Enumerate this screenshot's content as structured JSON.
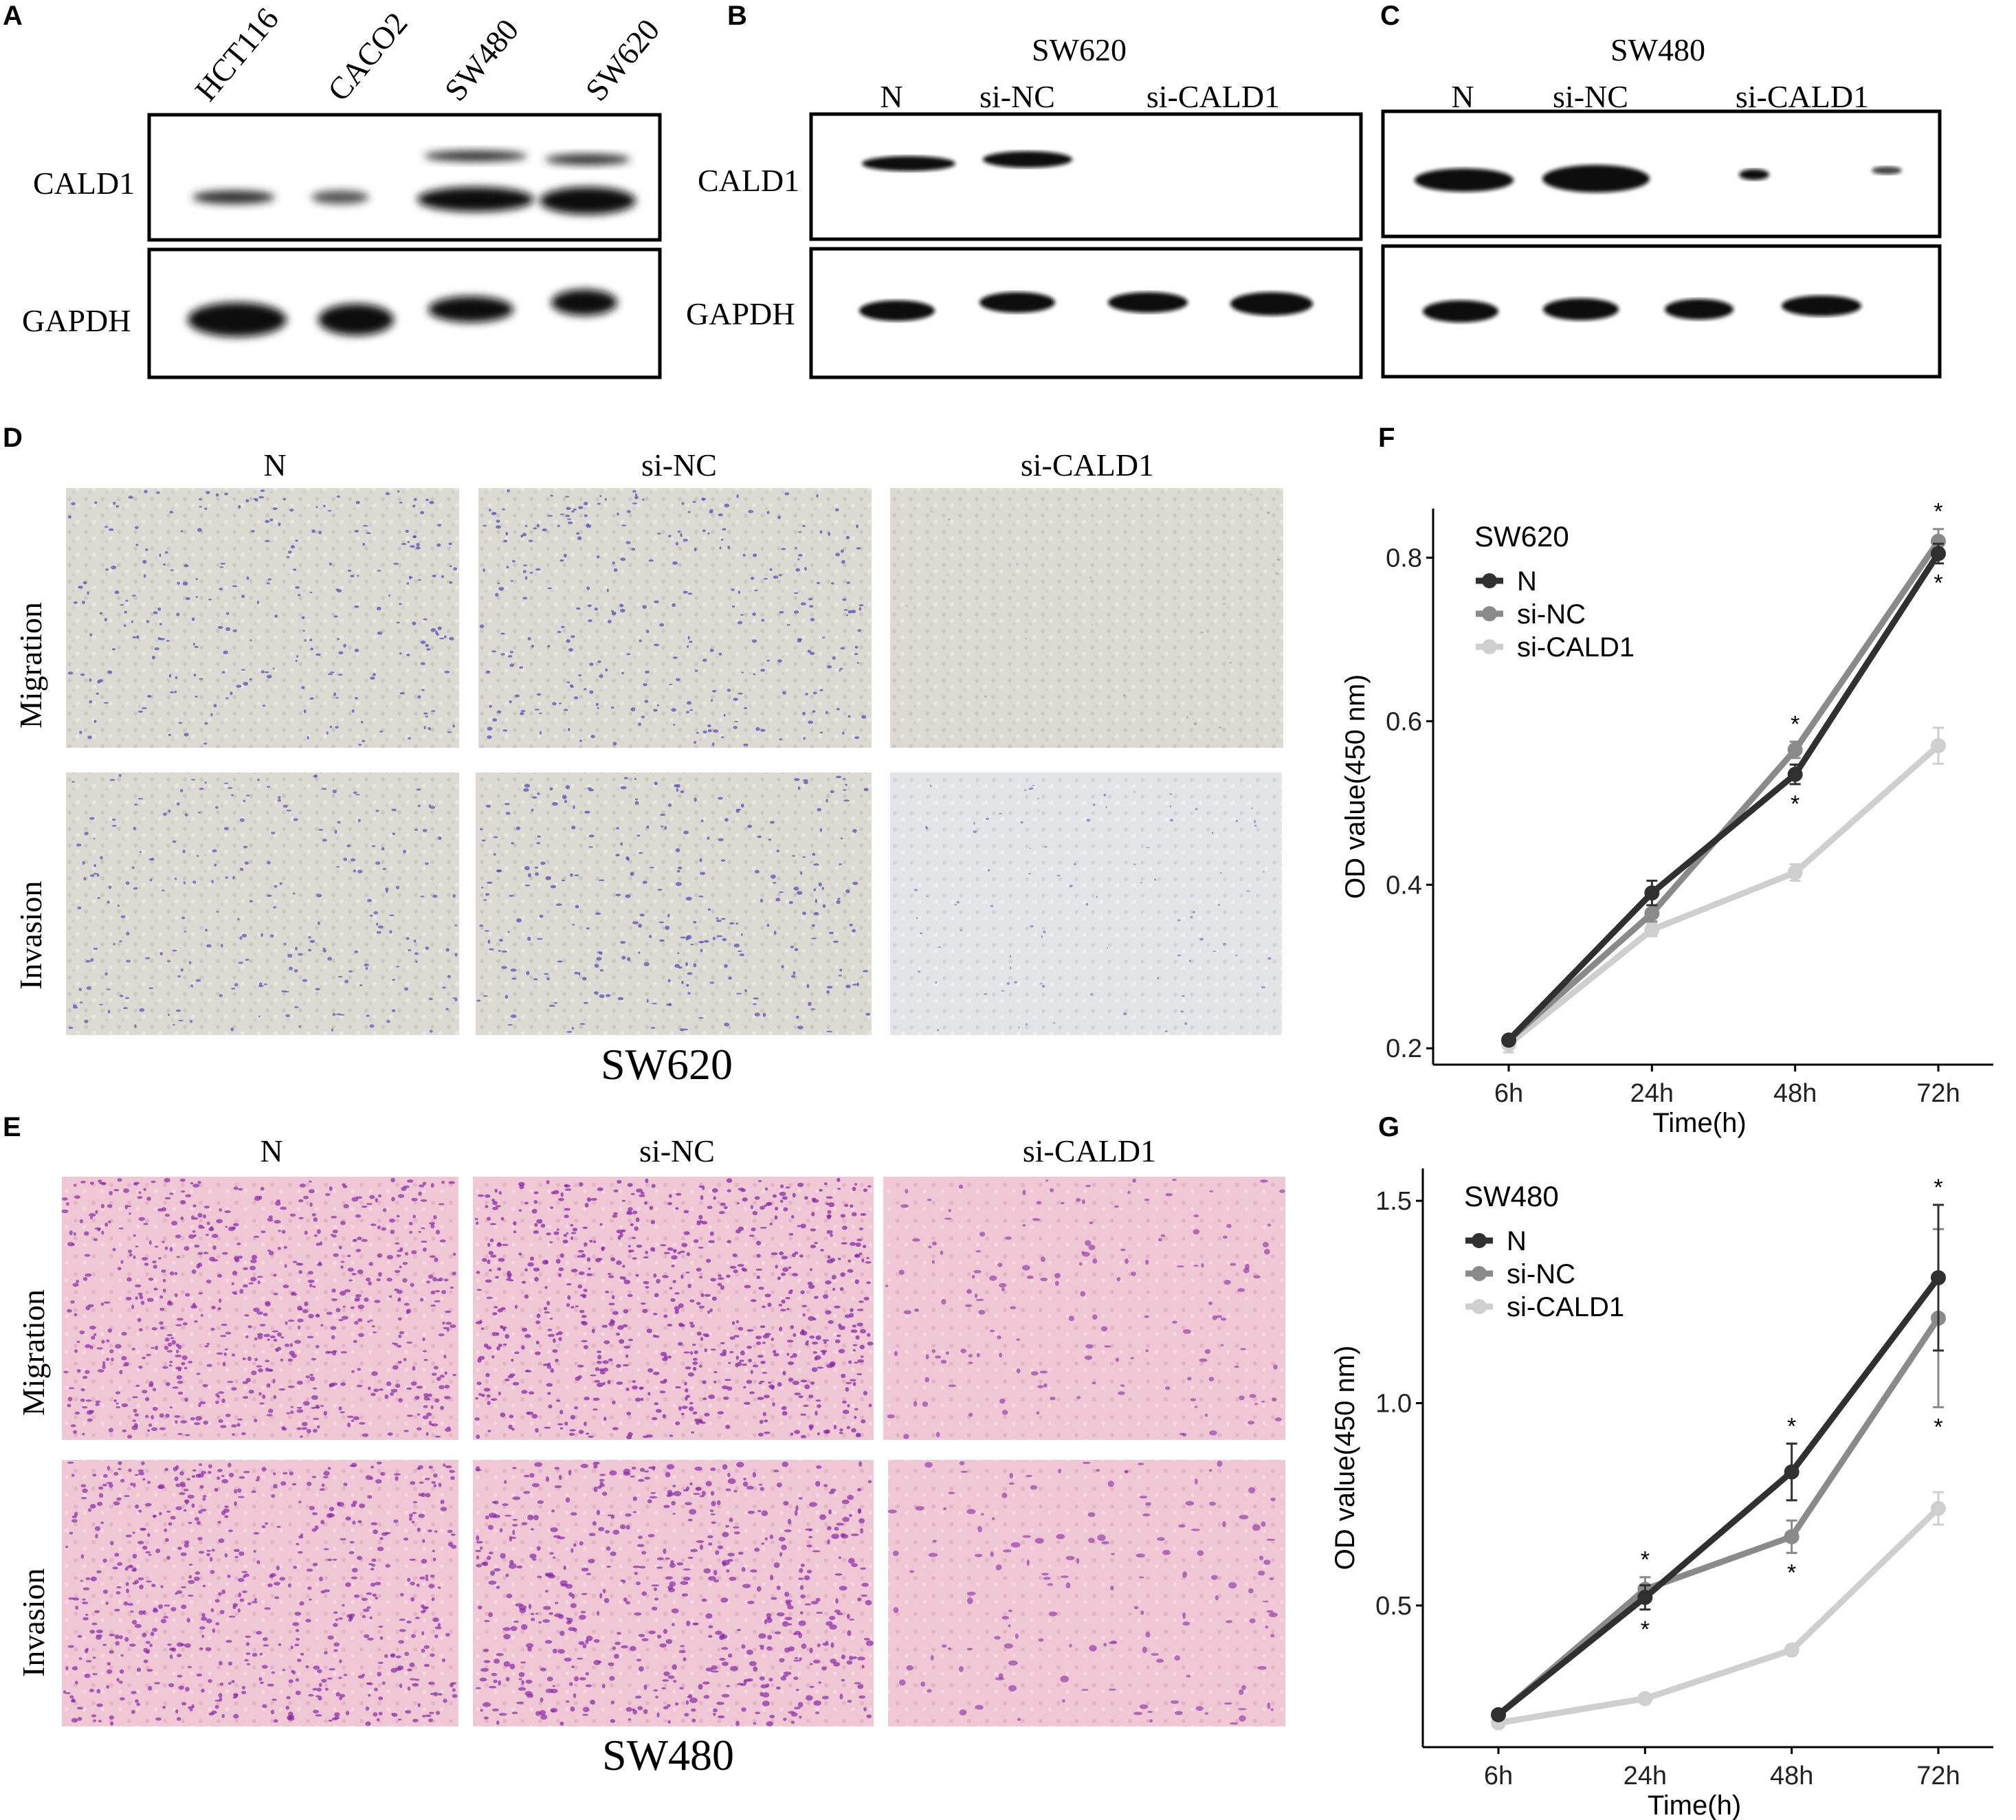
{
  "panel_letters": {
    "A": "A",
    "B": "B",
    "C": "C",
    "D": "D",
    "E": "E",
    "F": "F",
    "G": "G"
  },
  "panelA": {
    "lanes": [
      "HCT116",
      "CACO2",
      "SW480",
      "SW620"
    ],
    "rows": [
      "CALD1",
      "GAPDH"
    ]
  },
  "panelB": {
    "title": "SW620",
    "lanes": [
      "N",
      "si-NC",
      "si-CALD1"
    ],
    "rows": [
      "CALD1",
      "GAPDH"
    ]
  },
  "panelC": {
    "title": "SW480",
    "lanes": [
      "N",
      "si-NC",
      "si-CALD1"
    ]
  },
  "panelD": {
    "columns": [
      "N",
      "si-NC",
      "si-CALD1"
    ],
    "rows": [
      "Migration",
      "Invasion"
    ],
    "caption": "SW620",
    "stain_color": "#5b50b8",
    "background_color": "#d9d8cf"
  },
  "panelE": {
    "columns": [
      "N",
      "si-NC",
      "si-CALD1"
    ],
    "rows": [
      "Migration",
      "Invasion"
    ],
    "caption": "SW480",
    "stain_color": "#8a2aa8",
    "background_color": "#efc6d4"
  },
  "chart_data": [
    {
      "type": "line",
      "panel": "F",
      "xlabel": "Time(h)",
      "ylabel": "OD value(450 nm)",
      "categories": [
        "6h",
        "24h",
        "48h",
        "72h"
      ],
      "ylim": [
        0.18,
        0.86
      ],
      "yticks": [
        "0.2",
        "0.4",
        "0.6",
        "0.8"
      ],
      "legend_title": "SW620",
      "legend_position": "top-left",
      "grid": false,
      "series": [
        {
          "name": "N",
          "color": "#303030",
          "values": [
            0.21,
            0.39,
            0.535,
            0.805
          ],
          "err": [
            0.005,
            0.015,
            0.012,
            0.012
          ]
        },
        {
          "name": "si-NC",
          "color": "#8a8a8a",
          "values": [
            0.21,
            0.365,
            0.565,
            0.82
          ],
          "err": [
            0.005,
            0.01,
            0.01,
            0.015
          ]
        },
        {
          "name": "si-CALD1",
          "color": "#cfcfcf",
          "values": [
            0.205,
            0.345,
            0.415,
            0.57
          ],
          "err": [
            0.01,
            0.008,
            0.01,
            0.022
          ]
        }
      ],
      "annotations": [
        "*",
        "*",
        "*",
        "*"
      ]
    },
    {
      "type": "line",
      "panel": "G",
      "xlabel": "Time(h)",
      "ylabel": "OD value(450 nm)",
      "categories": [
        "6h",
        "24h",
        "48h",
        "72h"
      ],
      "ylim": [
        0.15,
        1.58
      ],
      "yticks": [
        "0.5",
        "1.0",
        "1.5"
      ],
      "legend_title": "SW480",
      "legend_position": "top-left",
      "grid": false,
      "series": [
        {
          "name": "N",
          "color": "#303030",
          "values": [
            0.23,
            0.52,
            0.83,
            1.31
          ],
          "err": [
            0.01,
            0.03,
            0.07,
            0.18
          ]
        },
        {
          "name": "si-NC",
          "color": "#8a8a8a",
          "values": [
            0.23,
            0.54,
            0.67,
            1.21
          ],
          "err": [
            0.01,
            0.03,
            0.04,
            0.22
          ]
        },
        {
          "name": "si-CALD1",
          "color": "#cfcfcf",
          "values": [
            0.21,
            0.27,
            0.39,
            0.74
          ],
          "err": [
            0.01,
            0.01,
            0.01,
            0.04
          ]
        }
      ],
      "annotations": [
        "*",
        "*",
        "*",
        "*",
        "*",
        "*"
      ]
    }
  ]
}
